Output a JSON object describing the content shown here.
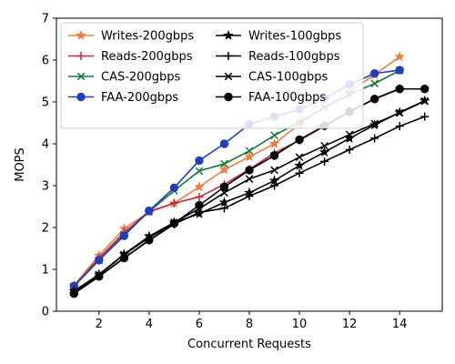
{
  "chart_data": {
    "type": "line",
    "xlabel": "Concurrent Requests",
    "ylabel": "MOPS",
    "xlim": [
      0.3,
      15.7
    ],
    "ylim": [
      0,
      7
    ],
    "xticks": [
      2,
      4,
      6,
      8,
      10,
      12,
      14
    ],
    "yticks": [
      0,
      1,
      2,
      3,
      4,
      5,
      6,
      7
    ],
    "grid": false,
    "legend_position": "top-left",
    "legend_columns": 2,
    "series": [
      {
        "name": "Writes-200gbps",
        "color": "#e8803d",
        "marker": "star",
        "x": [
          1,
          2,
          3,
          4,
          5,
          6,
          7,
          8,
          9,
          10,
          11,
          12,
          13,
          14
        ],
        "y": [
          0.62,
          1.33,
          1.97,
          2.37,
          2.58,
          2.97,
          3.38,
          3.69,
          4.0,
          4.47,
          4.88,
          5.25,
          5.65,
          6.08
        ]
      },
      {
        "name": "Reads-200gbps",
        "color": "#c8283d",
        "marker": "plus",
        "x": [
          1,
          2,
          3,
          4,
          5,
          6,
          7,
          8,
          9,
          10,
          11,
          12,
          13,
          14
        ],
        "y": [
          0.6,
          1.27,
          1.88,
          2.38,
          2.58,
          2.73,
          3.03,
          3.39,
          3.78,
          4.08,
          4.42,
          4.75,
          5.08,
          5.32
        ]
      },
      {
        "name": "CAS-200gbps",
        "color": "#177a38",
        "marker": "x",
        "x": [
          1,
          2,
          3,
          4,
          5,
          6,
          7,
          8,
          9,
          10,
          11,
          12,
          13,
          14
        ],
        "y": [
          0.59,
          1.22,
          1.83,
          2.38,
          2.88,
          3.35,
          3.52,
          3.83,
          4.2,
          4.52,
          4.86,
          5.18,
          5.44,
          5.75
        ]
      },
      {
        "name": "FAA-200gbps",
        "color": "#1f3fbf",
        "marker": "circle",
        "x": [
          1,
          2,
          3,
          4,
          5,
          6,
          7,
          8,
          9,
          10,
          11,
          12,
          13,
          14
        ],
        "y": [
          0.6,
          1.22,
          1.8,
          2.4,
          2.95,
          3.6,
          4.0,
          4.47,
          4.65,
          4.82,
          5.08,
          5.42,
          5.68,
          5.76
        ]
      },
      {
        "name": "Writes-100gbps",
        "color": "#000000",
        "marker": "star",
        "x": [
          1,
          2,
          3,
          4,
          5,
          6,
          7,
          8,
          9,
          10,
          11,
          12,
          13,
          14,
          15
        ],
        "y": [
          0.48,
          0.88,
          1.36,
          1.79,
          2.12,
          2.33,
          2.6,
          2.83,
          3.12,
          3.48,
          3.8,
          4.13,
          4.45,
          4.75,
          5.03
        ]
      },
      {
        "name": "Reads-100gbps",
        "color": "#000000",
        "marker": "plus",
        "x": [
          1,
          2,
          3,
          4,
          5,
          6,
          7,
          8,
          9,
          10,
          11,
          12,
          13,
          14,
          15
        ],
        "y": [
          0.43,
          0.83,
          1.27,
          1.69,
          2.08,
          2.36,
          2.46,
          2.75,
          3.0,
          3.3,
          3.58,
          3.86,
          4.13,
          4.42,
          4.65
        ]
      },
      {
        "name": "CAS-100gbps",
        "color": "#000000",
        "marker": "x",
        "x": [
          1,
          2,
          3,
          4,
          5,
          6,
          7,
          8,
          9,
          10,
          11,
          12,
          13,
          14,
          15
        ],
        "y": [
          0.46,
          0.87,
          1.35,
          1.76,
          2.12,
          2.45,
          2.83,
          3.16,
          3.37,
          3.68,
          3.95,
          4.22,
          4.48,
          4.74,
          5.02
        ]
      },
      {
        "name": "FAA-100gbps",
        "color": "#000000",
        "marker": "circle",
        "x": [
          1,
          2,
          3,
          4,
          5,
          6,
          7,
          8,
          9,
          10,
          11,
          12,
          13,
          14,
          15
        ],
        "y": [
          0.42,
          0.83,
          1.27,
          1.7,
          2.1,
          2.53,
          2.97,
          3.37,
          3.72,
          4.1,
          4.43,
          4.77,
          5.07,
          5.31,
          5.31
        ]
      }
    ]
  }
}
